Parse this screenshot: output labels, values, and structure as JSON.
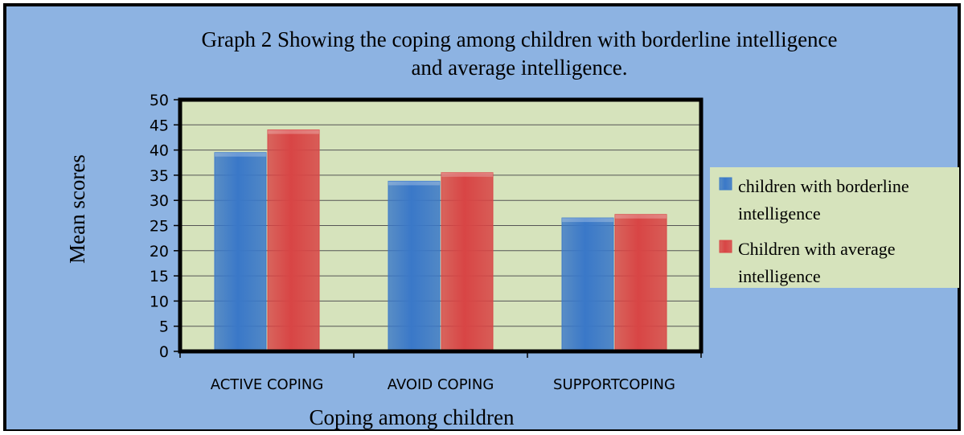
{
  "chart_data": {
    "type": "bar",
    "title_line1": "Graph 2 Showing the coping among children with borderline intelligence",
    "title_line2": "and average intelligence.",
    "xlabel": "Coping among children",
    "ylabel": "Mean scores",
    "categories": [
      "ACTIVE COPING",
      "AVOID COPING",
      "SUPPORTCOPING"
    ],
    "series": [
      {
        "name": "children with borderline intelligence",
        "legend_lines": [
          "children with borderline",
          "intelligence"
        ],
        "values": [
          39.5,
          33.8,
          26.5
        ],
        "color": "#3a78c8"
      },
      {
        "name": "Children with average intelligence",
        "legend_lines": [
          "Children with average",
          "intelligence"
        ],
        "values": [
          44,
          35.5,
          27.2
        ],
        "color": "#d84545"
      }
    ],
    "ylim": [
      0,
      50
    ],
    "yticks": [
      0,
      5,
      10,
      15,
      20,
      25,
      30,
      35,
      40,
      45,
      50
    ],
    "grid": true,
    "legend_position": "right",
    "colors": {
      "outer_background": "#8db3e2",
      "plot_background": "#d6e3bc",
      "legend_background": "#d6e3bc",
      "frame": "#000000"
    }
  }
}
